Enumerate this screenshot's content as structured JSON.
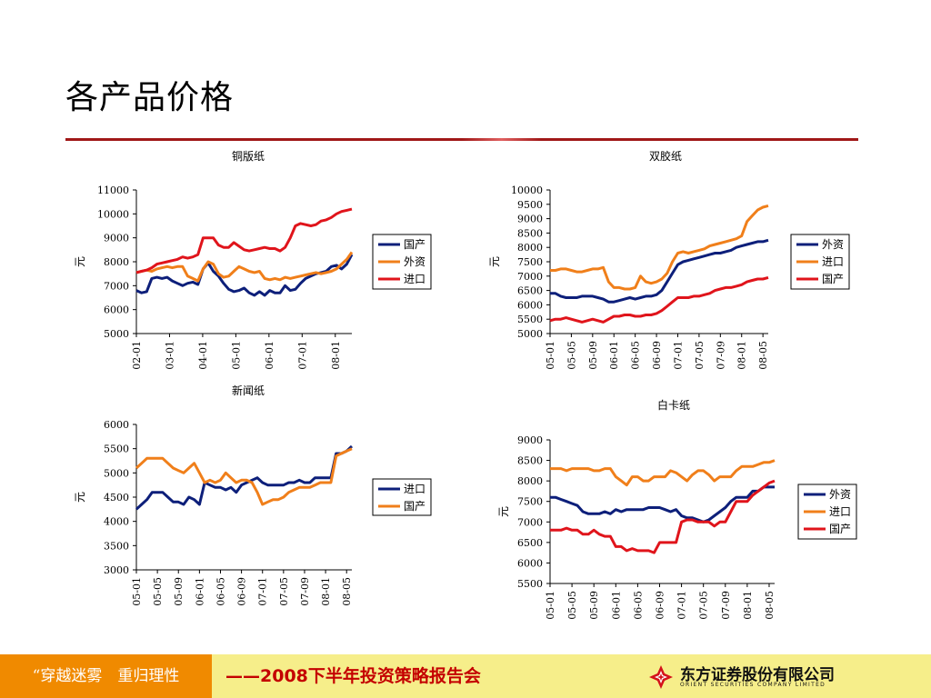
{
  "page": {
    "title": "各产品价格",
    "footer_left": "“穿越迷雾　重归理性",
    "footer_mid": "——2008下半年投资策略报告会",
    "logo_name": "东方证券股份有限公司",
    "logo_en": "ORIENT SECURITIES COMPANY LIMITED"
  },
  "chart_data": [
    {
      "type": "line",
      "title": "铜版纸",
      "ylabel": "元",
      "ylim": [
        5000,
        11000
      ],
      "yticks": [
        5000,
        6000,
        7000,
        8000,
        9000,
        10000,
        11000
      ],
      "x_start": "2002-01",
      "x_end": "2008-07",
      "xticks": [
        "02-01",
        "03-01",
        "04-01",
        "05-01",
        "06-01",
        "07-01",
        "08-01"
      ],
      "legend_position": "right",
      "series": [
        {
          "name": "国产",
          "color": "#0d1f7a",
          "values": [
            6800,
            6700,
            6750,
            7300,
            7350,
            7300,
            7350,
            7200,
            7100,
            7000,
            7100,
            7150,
            7050,
            7700,
            7950,
            7600,
            7400,
            7100,
            6850,
            6750,
            6800,
            6900,
            6700,
            6600,
            6750,
            6600,
            6800,
            6700,
            6700,
            7000,
            6800,
            6850,
            7100,
            7300,
            7400,
            7500,
            7550,
            7600,
            7800,
            7850,
            7700,
            7900,
            8300
          ]
        },
        {
          "name": "外资",
          "color": "#f07f1a",
          "values": [
            7550,
            7600,
            7650,
            7600,
            7700,
            7750,
            7800,
            7750,
            7800,
            7800,
            7400,
            7300,
            7200,
            7700,
            8000,
            7900,
            7500,
            7350,
            7400,
            7600,
            7800,
            7700,
            7600,
            7550,
            7600,
            7300,
            7250,
            7300,
            7250,
            7350,
            7300,
            7350,
            7400,
            7450,
            7500,
            7550,
            7500,
            7550,
            7600,
            7700,
            7900,
            8100,
            8400
          ]
        },
        {
          "name": "进口",
          "color": "#e0141b",
          "values": [
            7550,
            7600,
            7650,
            7750,
            7900,
            7950,
            8000,
            8050,
            8100,
            8200,
            8150,
            8200,
            8300,
            9000,
            9000,
            9000,
            8700,
            8600,
            8600,
            8800,
            8650,
            8500,
            8450,
            8500,
            8550,
            8600,
            8550,
            8550,
            8450,
            8600,
            9000,
            9500,
            9600,
            9550,
            9500,
            9550,
            9700,
            9750,
            9850,
            10000,
            10100,
            10150,
            10200
          ]
        }
      ]
    },
    {
      "type": "line",
      "title": "双胶纸",
      "ylabel": "元",
      "ylim": [
        5000,
        10000
      ],
      "yticks": [
        5000,
        5500,
        6000,
        6500,
        7000,
        7500,
        8000,
        8500,
        9000,
        9500,
        10000
      ],
      "x_start": "2005-01",
      "x_end": "2008-06",
      "xticks": [
        "05-01",
        "05-05",
        "05-09",
        "06-01",
        "06-05",
        "06-09",
        "07-01",
        "07-05",
        "07-09",
        "08-01",
        "08-05"
      ],
      "legend_position": "right",
      "series": [
        {
          "name": "外资",
          "color": "#0d1f7a",
          "values": [
            6400,
            6400,
            6300,
            6250,
            6250,
            6250,
            6300,
            6300,
            6300,
            6250,
            6200,
            6100,
            6100,
            6150,
            6200,
            6250,
            6200,
            6250,
            6300,
            6300,
            6350,
            6500,
            6800,
            7100,
            7400,
            7500,
            7550,
            7600,
            7650,
            7700,
            7750,
            7800,
            7800,
            7850,
            7900,
            8000,
            8050,
            8100,
            8150,
            8200,
            8200,
            8250
          ]
        },
        {
          "name": "进口",
          "color": "#f07f1a",
          "values": [
            7200,
            7200,
            7250,
            7250,
            7200,
            7150,
            7150,
            7200,
            7250,
            7250,
            7300,
            6800,
            6600,
            6600,
            6550,
            6550,
            6600,
            7000,
            6800,
            6750,
            6800,
            6900,
            7100,
            7500,
            7800,
            7850,
            7800,
            7850,
            7900,
            7950,
            8050,
            8100,
            8150,
            8200,
            8250,
            8300,
            8400,
            8900,
            9100,
            9300,
            9400,
            9450
          ]
        },
        {
          "name": "国产",
          "color": "#e0141b",
          "values": [
            5450,
            5500,
            5500,
            5550,
            5500,
            5450,
            5400,
            5450,
            5500,
            5450,
            5400,
            5500,
            5600,
            5600,
            5650,
            5650,
            5600,
            5600,
            5650,
            5650,
            5700,
            5800,
            5950,
            6100,
            6250,
            6250,
            6250,
            6300,
            6300,
            6350,
            6400,
            6500,
            6550,
            6600,
            6600,
            6650,
            6700,
            6800,
            6850,
            6900,
            6900,
            6950
          ]
        }
      ]
    },
    {
      "type": "line",
      "title": "新闻纸",
      "ylabel": "元",
      "ylim": [
        3000,
        6000
      ],
      "yticks": [
        3000,
        3500,
        4000,
        4500,
        5000,
        5500,
        6000
      ],
      "x_start": "2005-01",
      "x_end": "2008-06",
      "xticks": [
        "05-01",
        "05-05",
        "05-09",
        "06-01",
        "06-05",
        "06-09",
        "07-01",
        "07-05",
        "07-09",
        "08-01",
        "08-05"
      ],
      "legend_position": "right",
      "series": [
        {
          "name": "进口",
          "color": "#0d1f7a",
          "values": [
            4250,
            4350,
            4450,
            4600,
            4600,
            4600,
            4500,
            4400,
            4400,
            4350,
            4500,
            4450,
            4350,
            4800,
            4750,
            4700,
            4700,
            4650,
            4700,
            4600,
            4750,
            4800,
            4850,
            4900,
            4800,
            4750,
            4750,
            4750,
            4750,
            4800,
            4800,
            4850,
            4800,
            4800,
            4900,
            4900,
            4900,
            4900,
            5400,
            5400,
            5450,
            5550
          ]
        },
        {
          "name": "国产",
          "color": "#f07f1a",
          "values": [
            5100,
            5200,
            5300,
            5300,
            5300,
            5300,
            5200,
            5100,
            5050,
            5000,
            5100,
            5200,
            5000,
            4800,
            4850,
            4800,
            4850,
            5000,
            4900,
            4800,
            4850,
            4850,
            4800,
            4600,
            4350,
            4400,
            4450,
            4450,
            4500,
            4600,
            4650,
            4700,
            4700,
            4700,
            4750,
            4800,
            4800,
            4800,
            5350,
            5400,
            5450,
            5500
          ]
        }
      ]
    },
    {
      "type": "line",
      "title": "白卡纸",
      "ylabel": "元",
      "ylim": [
        5500,
        9000
      ],
      "yticks": [
        5500,
        6000,
        6500,
        7000,
        7500,
        8000,
        8500,
        9000
      ],
      "x_start": "2005-01",
      "x_end": "2008-06",
      "xticks": [
        "05-01",
        "05-05",
        "05-09",
        "06-01",
        "06-05",
        "06-09",
        "07-01",
        "07-05",
        "07-09",
        "08-01",
        "08-05"
      ],
      "legend_position": "right",
      "series": [
        {
          "name": "外资",
          "color": "#0d1f7a",
          "values": [
            7600,
            7600,
            7550,
            7500,
            7450,
            7400,
            7250,
            7200,
            7200,
            7200,
            7250,
            7200,
            7300,
            7250,
            7300,
            7300,
            7300,
            7300,
            7350,
            7350,
            7350,
            7300,
            7250,
            7300,
            7150,
            7100,
            7100,
            7050,
            7000,
            7050,
            7150,
            7250,
            7350,
            7500,
            7600,
            7600,
            7600,
            7750,
            7750,
            7850,
            7850,
            7850
          ]
        },
        {
          "name": "进口",
          "color": "#f07f1a",
          "values": [
            8300,
            8300,
            8300,
            8250,
            8300,
            8300,
            8300,
            8300,
            8250,
            8250,
            8300,
            8300,
            8100,
            8000,
            7900,
            8100,
            8100,
            8000,
            8000,
            8100,
            8100,
            8100,
            8250,
            8200,
            8100,
            8000,
            8150,
            8250,
            8250,
            8150,
            8000,
            8100,
            8100,
            8100,
            8250,
            8350,
            8350,
            8350,
            8400,
            8450,
            8450,
            8500
          ]
        },
        {
          "name": "国产",
          "color": "#e0141b",
          "values": [
            6800,
            6800,
            6800,
            6850,
            6800,
            6800,
            6700,
            6700,
            6800,
            6700,
            6650,
            6650,
            6400,
            6400,
            6300,
            6350,
            6300,
            6300,
            6300,
            6250,
            6500,
            6500,
            6500,
            6500,
            7000,
            7050,
            7050,
            7000,
            7000,
            7000,
            6900,
            7000,
            7000,
            7250,
            7500,
            7500,
            7500,
            7650,
            7750,
            7850,
            7950,
            8000
          ]
        }
      ]
    }
  ]
}
